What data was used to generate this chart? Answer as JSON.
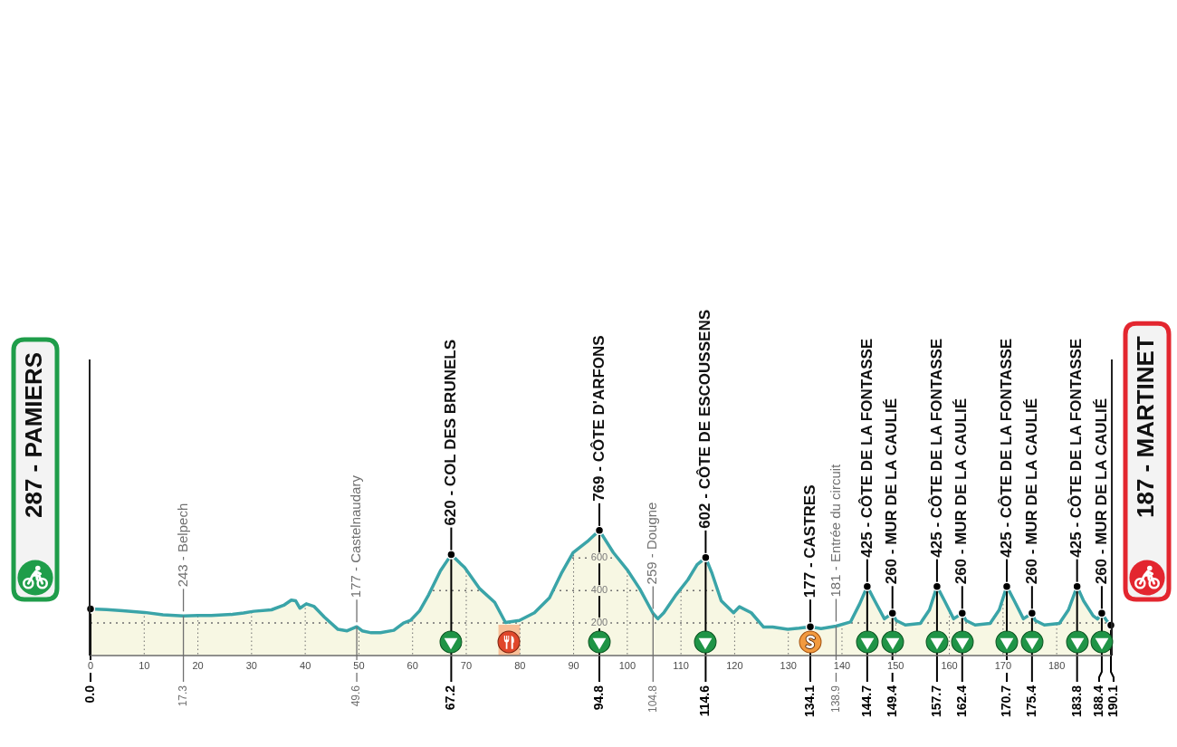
{
  "chart_data": {
    "type": "area",
    "xlim": [
      0,
      190.1
    ],
    "xticks": [
      0,
      10,
      20,
      30,
      40,
      50,
      60,
      70,
      80,
      90,
      100,
      110,
      120,
      130,
      140,
      150,
      160,
      170,
      180
    ],
    "ylim": [
      0,
      1820
    ],
    "yticks": [
      200,
      400,
      600
    ],
    "grid": true,
    "series": [
      {
        "color": "#3aa4a8",
        "x": [
          0,
          3,
          6,
          10.1,
          13.5,
          17.3,
          20,
          22.5,
          26.4,
          28.5,
          30.4,
          33.7,
          36,
          37.4,
          38.2,
          39,
          40.2,
          41.6,
          43.6,
          46.1,
          47.8,
          49.6,
          50.6,
          52.3,
          54,
          56.5,
          58.3,
          59.6,
          61.3,
          63,
          65.2,
          67.2,
          69.7,
          72.5,
          75.3,
          77.3,
          79.9,
          82.7,
          85.5,
          87.7,
          89.9,
          92.8,
          94.8,
          97.4,
          100.1,
          102.3,
          104.8,
          105.7,
          106.8,
          109.1,
          111.3,
          113,
          114.6,
          115.8,
          117.5,
          119.8,
          120.9,
          123.1,
          125.4,
          127.1,
          129.9,
          132,
          134.1,
          136.1,
          138.9,
          141.6,
          143.3,
          144.7,
          146.1,
          147.9,
          149.4,
          150.1,
          151.8,
          154.6,
          156.3,
          157.7,
          159.1,
          160.8,
          162.4,
          163.1,
          164.8,
          167.6,
          169.3,
          170.7,
          172.1,
          173.8,
          175.4,
          176,
          177.7,
          180.5,
          182.2,
          183.8,
          185,
          186.8,
          187.6,
          188.4,
          189.3,
          190.1
        ],
        "values": [
          287,
          282,
          275,
          265,
          250,
          243,
          246,
          246,
          253,
          262,
          272,
          281,
          309,
          341,
          337,
          291,
          318,
          303,
          235,
          161,
          152,
          177,
          152,
          140,
          140,
          155,
          200,
          216,
          275,
          374,
          522,
          620,
          541,
          411,
          327,
          203,
          216,
          263,
          355,
          504,
          633,
          708,
          769,
          633,
          522,
          411,
          259,
          226,
          263,
          374,
          466,
          559,
          602,
          504,
          337,
          263,
          300,
          263,
          175,
          175,
          161,
          168,
          177,
          166,
          181,
          207,
          318,
          425,
          337,
          226,
          260,
          216,
          188,
          198,
          281,
          425,
          337,
          226,
          260,
          216,
          188,
          198,
          281,
          425,
          337,
          226,
          260,
          216,
          188,
          198,
          281,
          425,
          337,
          244,
          225,
          260,
          215,
          187
        ]
      },
      {
        "type": "scatter",
        "color": "#000000",
        "marker": "circle",
        "x": [
          0,
          67.2,
          94.8,
          114.6,
          134.1,
          144.7,
          149.4,
          157.7,
          162.4,
          170.7,
          175.4,
          183.8,
          188.4,
          190.1
        ],
        "values": [
          287,
          620,
          769,
          602,
          177,
          425,
          260,
          425,
          260,
          425,
          260,
          425,
          260,
          187
        ]
      }
    ],
    "bands": [
      {
        "axis": "x",
        "from": 76,
        "to": 80,
        "color": "#f8bf98"
      }
    ],
    "ref_lines": [
      {
        "axis": "x",
        "value": 0,
        "label": "0.0",
        "color": "#000000"
      },
      {
        "axis": "x",
        "value": 17.3,
        "label": "17.3",
        "color": "#707070"
      },
      {
        "axis": "x",
        "value": 49.6,
        "label": "49.6",
        "color": "#707070"
      },
      {
        "axis": "x",
        "value": 67.2,
        "label": "67.2",
        "color": "#000000"
      },
      {
        "axis": "x",
        "value": 94.8,
        "label": "94.8",
        "color": "#000000"
      },
      {
        "axis": "x",
        "value": 104.8,
        "label": "104.8",
        "color": "#707070"
      },
      {
        "axis": "x",
        "value": 114.6,
        "label": "114.6",
        "color": "#000000"
      },
      {
        "axis": "x",
        "value": 134.1,
        "label": "134.1",
        "color": "#000000"
      },
      {
        "axis": "x",
        "value": 138.9,
        "label": "138.9",
        "color": "#707070"
      },
      {
        "axis": "x",
        "value": 144.7,
        "label": "144.7",
        "color": "#000000"
      },
      {
        "axis": "x",
        "value": 149.4,
        "label": "149.4",
        "color": "#000000"
      },
      {
        "axis": "x",
        "value": 157.7,
        "label": "157.7",
        "color": "#000000"
      },
      {
        "axis": "x",
        "value": 162.4,
        "label": "162.4",
        "color": "#000000"
      },
      {
        "axis": "x",
        "value": 170.7,
        "label": "170.7",
        "color": "#000000"
      },
      {
        "axis": "x",
        "value": 175.4,
        "label": "175.4",
        "color": "#000000"
      },
      {
        "axis": "x",
        "value": 183.8,
        "label": "183.8",
        "color": "#000000"
      },
      {
        "axis": "x",
        "value": 188.4,
        "label": "188.4",
        "color": "#000000"
      },
      {
        "axis": "x",
        "value": 190.1,
        "label": "190.1",
        "color": "#000000"
      }
    ],
    "annotations": [
      "287 - PAMIERS",
      {
        "text": "243 - Belpech",
        "x": 17.3,
        "y": 243
      },
      {
        "text": "177 - Castelnaudary",
        "x": 49.6,
        "y": 177
      },
      {
        "text": "620 - COL DES BRUNELS",
        "x": 67.2,
        "y": 620
      },
      {
        "text": "769 - CÔTE D'ARFONS",
        "x": 94.8,
        "y": 769
      },
      {
        "text": "259 - Dougne",
        "x": 104.8,
        "y": 259
      },
      {
        "text": "602 - CÔTE DE ESCOUSSENS",
        "x": 114.6,
        "y": 602
      },
      {
        "text": "177 - CASTRES",
        "x": 134.1,
        "y": 177
      },
      {
        "text": "181 - Entrée du circuit",
        "x": 138.9,
        "y": 181
      },
      {
        "text": "425 - CÔTE DE LA FONTASSE",
        "x": 144.7,
        "y": 425
      },
      {
        "text": "260 - MUR DE LA CAULIÉ",
        "x": 149.4,
        "y": 260
      },
      {
        "text": "425 - CÔTE DE LA FONTASSE",
        "x": 157.7,
        "y": 425
      },
      {
        "text": "260 - MUR DE LA CAULIÉ",
        "x": 162.4,
        "y": 260
      },
      {
        "text": "425 - CÔTE DE LA FONTASSE",
        "x": 170.7,
        "y": 425
      },
      {
        "text": "260 - MUR DE LA CAULIÉ",
        "x": 175.4,
        "y": 260
      },
      {
        "text": "425 - CÔTE DE LA FONTASSE",
        "x": 183.8,
        "y": 425
      },
      {
        "text": "260 - MUR DE LA CAULIÉ",
        "x": 188.4,
        "y": 260
      },
      "187 - MARTINET"
    ]
  }
}
